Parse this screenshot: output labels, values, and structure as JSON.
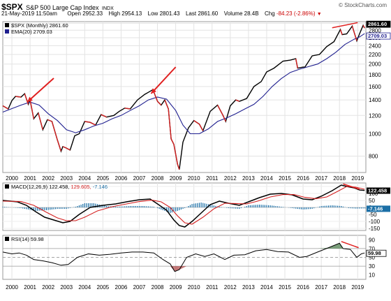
{
  "header": {
    "symbol": "$SPX",
    "name": "S&P 500 Large Cap Index",
    "exchange": "INDX",
    "date": "21-May-2019 11:50am",
    "open_label": "Open",
    "open": "2952.33",
    "high_label": "High",
    "high": "2954.13",
    "low_label": "Low",
    "low": "2801.43",
    "close_label": "Last",
    "close": "2861.60",
    "volume_label": "Volume",
    "volume": "28.4B",
    "chg_label": "Chg",
    "chg": "-84.23 (-2.86%)",
    "watermark": "© StockCharts.com"
  },
  "chart_data": [
    {
      "type": "line",
      "panel": "price",
      "legend": [
        {
          "label": "$SPX (Monthly) 2861.60",
          "color": "#000000"
        },
        {
          "label": "EMA(20) 2709.03",
          "color": "#1f1f8f"
        }
      ],
      "y_scale": "log",
      "ylim": [
        680,
        3050
      ],
      "y_ticks": [
        800,
        1000,
        1200,
        1400,
        1600,
        1800,
        2000,
        2200,
        2400,
        2600,
        2800,
        3000
      ],
      "x_ticks": [
        "2000",
        "2001",
        "2002",
        "2003",
        "2004",
        "2005",
        "2006",
        "2007",
        "2008",
        "2009",
        "2010",
        "2011",
        "2012",
        "2013",
        "2014",
        "2015",
        "2016",
        "2017",
        "2018",
        "2019"
      ],
      "xlim": [
        1999.5,
        2019.45
      ],
      "last_labels": [
        {
          "text": "2861.60",
          "value": 2861.6,
          "color": "#000000"
        },
        {
          "text": "2709.03",
          "value": 2709.03,
          "color": "#1f1f8f"
        }
      ],
      "series": [
        {
          "name": "$SPX (Monthly)",
          "color": "#000000",
          "x": [
            1999.5,
            1999.8,
            2000.0,
            2000.2,
            2000.5,
            2000.7,
            2000.9,
            2001.0,
            2001.2,
            2001.45,
            2001.7,
            2001.95,
            2002.2,
            2002.5,
            2002.7,
            2002.8,
            2002.95,
            2003.2,
            2003.45,
            2003.7,
            2004.0,
            2004.3,
            2004.6,
            2004.9,
            2005.2,
            2005.6,
            2005.9,
            2006.2,
            2006.5,
            2006.9,
            2007.3,
            2007.5,
            2007.75,
            2008.0,
            2008.2,
            2008.4,
            2008.6,
            2008.75,
            2008.9,
            2009.1,
            2009.2,
            2009.4,
            2009.7,
            2010.0,
            2010.3,
            2010.5,
            2010.9,
            2011.3,
            2011.6,
            2011.75,
            2012.0,
            2012.3,
            2012.5,
            2012.9,
            2013.3,
            2013.7,
            2014.0,
            2014.4,
            2014.9,
            2015.3,
            2015.6,
            2015.7,
            2016.0,
            2016.1,
            2016.5,
            2016.9,
            2017.3,
            2017.7,
            2018.05,
            2018.15,
            2018.4,
            2018.7,
            2018.95,
            2019.1,
            2019.3,
            2019.38
          ],
          "y": [
            1320,
            1280,
            1390,
            1450,
            1440,
            1490,
            1340,
            1400,
            1160,
            1230,
            1040,
            1150,
            1130,
            940,
            840,
            880,
            870,
            850,
            980,
            1000,
            1130,
            1120,
            1090,
            1210,
            1180,
            1200,
            1250,
            1290,
            1280,
            1400,
            1480,
            1510,
            1550,
            1380,
            1330,
            1400,
            1280,
            950,
            900,
            740,
            700,
            920,
            1060,
            1140,
            1100,
            1030,
            1250,
            1330,
            1200,
            1130,
            1320,
            1400,
            1380,
            1420,
            1600,
            1680,
            1850,
            1920,
            2060,
            2080,
            2110,
            1920,
            1940,
            1940,
            2170,
            2200,
            2380,
            2500,
            2820,
            2680,
            2700,
            2920,
            2520,
            2700,
            2940,
            2862
          ]
        },
        {
          "name": "EMA(20)",
          "color": "#1f1f8f",
          "x": [
            1999.5,
            2000.5,
            2001.0,
            2001.5,
            2002.0,
            2002.5,
            2003.0,
            2003.5,
            2004.0,
            2004.5,
            2005.0,
            2005.5,
            2006.0,
            2006.5,
            2007.0,
            2007.5,
            2008.0,
            2008.5,
            2009.0,
            2009.4,
            2009.8,
            2010.3,
            2010.8,
            2011.3,
            2011.8,
            2012.3,
            2012.8,
            2013.3,
            2013.8,
            2014.3,
            2014.8,
            2015.3,
            2015.8,
            2016.3,
            2016.8,
            2017.3,
            2017.8,
            2018.3,
            2018.8,
            2019.1,
            2019.38
          ],
          "y": [
            1240,
            1330,
            1370,
            1330,
            1220,
            1140,
            1040,
            1010,
            1040,
            1080,
            1110,
            1160,
            1200,
            1260,
            1320,
            1400,
            1440,
            1410,
            1260,
            1090,
            1000,
            1000,
            1050,
            1130,
            1170,
            1220,
            1280,
            1340,
            1450,
            1600,
            1730,
            1840,
            1900,
            1950,
            2000,
            2110,
            2250,
            2430,
            2560,
            2620,
            2709
          ]
        }
      ]
    },
    {
      "type": "line",
      "panel": "macd",
      "legend": [
        {
          "label": "MACD(12,26,9) 122.458, 129.605, -7.146",
          "color": "#000000"
        }
      ],
      "legend_parts": [
        "MACD(12,26,9)",
        "122.458,",
        "129.605,",
        "-7.146"
      ],
      "ylim": [
        -165,
        175
      ],
      "y_ticks": [
        150,
        100,
        50,
        0,
        -50,
        -100,
        -150
      ],
      "xlim": [
        1999.5,
        2019.45
      ],
      "last_labels": [
        {
          "text": "122.458",
          "value": 122.458,
          "color": "#000000"
        },
        {
          "text": "-7.146",
          "value": -7.146,
          "color": "#1b6fa6"
        }
      ],
      "series": [
        {
          "name": "MACD",
          "color": "#000000",
          "x": [
            1999.5,
            2000.3,
            2000.8,
            2001.3,
            2001.8,
            2002.3,
            2002.8,
            2003.2,
            2003.7,
            2004.3,
            2005.0,
            2005.7,
            2006.3,
            2007.0,
            2007.6,
            2008.0,
            2008.5,
            2008.9,
            2009.2,
            2009.5,
            2009.9,
            2010.4,
            2010.9,
            2011.4,
            2011.9,
            2012.5,
            2013.0,
            2013.6,
            2014.2,
            2014.8,
            2015.4,
            2016.0,
            2016.5,
            2017.0,
            2017.6,
            2018.1,
            2018.4,
            2018.8,
            2019.1,
            2019.38
          ],
          "y": [
            50,
            40,
            15,
            -30,
            -70,
            -90,
            -110,
            -100,
            -50,
            0,
            15,
            25,
            40,
            55,
            60,
            25,
            -20,
            -90,
            -130,
            -140,
            -100,
            -40,
            20,
            45,
            30,
            15,
            40,
            70,
            95,
            100,
            90,
            60,
            55,
            80,
            120,
            160,
            150,
            140,
            125,
            122
          ]
        },
        {
          "name": "Signal",
          "color": "#d42020",
          "x": [
            1999.5,
            2000.5,
            2001.2,
            2001.9,
            2002.5,
            2003.0,
            2003.5,
            2004.0,
            2004.7,
            2005.5,
            2006.3,
            2007.0,
            2007.7,
            2008.2,
            2008.7,
            2009.1,
            2009.5,
            2009.9,
            2010.5,
            2011.1,
            2011.7,
            2012.3,
            2012.9,
            2013.5,
            2014.2,
            2014.9,
            2015.5,
            2016.1,
            2016.7,
            2017.3,
            2017.9,
            2018.4,
            2018.9,
            2019.38
          ],
          "y": [
            45,
            42,
            15,
            -35,
            -75,
            -95,
            -95,
            -70,
            -25,
            5,
            25,
            42,
            52,
            40,
            0,
            -60,
            -110,
            -120,
            -70,
            -10,
            30,
            28,
            25,
            45,
            75,
            92,
            92,
            72,
            62,
            75,
            115,
            150,
            145,
            130
          ]
        }
      ],
      "histogram": {
        "name": "Histogram",
        "color": "#1b6fa6",
        "x": [
          1999.5,
          2000.5,
          2001.3,
          2001.9,
          2002.5,
          2003.0,
          2003.5,
          2004.0,
          2004.5,
          2005.2,
          2005.8,
          2006.5,
          2007.2,
          2007.8,
          2008.3,
          2008.7,
          2009.1,
          2009.5,
          2009.9,
          2010.4,
          2010.9,
          2011.4,
          2011.9,
          2012.5,
          2013.0,
          2013.6,
          2014.2,
          2014.8,
          2015.4,
          2016.0,
          2016.5,
          2017.0,
          2017.6,
          2018.1,
          2018.5,
          2018.9,
          2019.38
        ],
        "y": [
          5,
          -5,
          -25,
          -20,
          -10,
          -10,
          5,
          30,
          30,
          10,
          5,
          10,
          10,
          5,
          -20,
          -40,
          -25,
          -5,
          25,
          35,
          20,
          5,
          -5,
          -10,
          15,
          20,
          15,
          5,
          -5,
          -15,
          -10,
          10,
          15,
          10,
          -5,
          -8,
          -7
        ]
      }
    },
    {
      "type": "line",
      "panel": "rsi",
      "legend": [
        {
          "label": "RSI(14) 59.98",
          "color": "#000000"
        }
      ],
      "legend_parts": [
        "RSI(14)",
        "59.98"
      ],
      "ylim": [
        0,
        100
      ],
      "y_ticks": [
        90,
        70,
        50,
        30,
        10
      ],
      "x_ticks": [
        "2000",
        "2001",
        "2002",
        "2003",
        "2004",
        "2005",
        "2006",
        "2007",
        "2008",
        "2009",
        "2010",
        "2011",
        "2012",
        "2013",
        "2014",
        "2015",
        "2016",
        "2017",
        "2018",
        "2019"
      ],
      "xlim": [
        1999.5,
        2019.45
      ],
      "reference_lines": [
        70,
        50,
        30
      ],
      "last_labels": [
        {
          "text": "59.98",
          "value": 59.98,
          "color": "#000000"
        }
      ],
      "series": [
        {
          "name": "RSI(14)",
          "color": "#000000",
          "x": [
            1999.5,
            2000.0,
            2000.4,
            2000.8,
            2001.2,
            2001.7,
            2002.2,
            2002.7,
            2003.1,
            2003.6,
            2004.2,
            2004.8,
            2005.4,
            2006.0,
            2006.6,
            2007.2,
            2007.8,
            2008.3,
            2008.7,
            2008.95,
            2009.2,
            2009.6,
            2010.1,
            2010.6,
            2011.1,
            2011.7,
            2012.2,
            2012.8,
            2013.4,
            2014.0,
            2014.6,
            2015.2,
            2015.8,
            2016.2,
            2016.8,
            2017.4,
            2018.0,
            2018.2,
            2018.6,
            2018.95,
            2019.2,
            2019.38
          ],
          "y": [
            62,
            58,
            60,
            55,
            45,
            42,
            38,
            32,
            34,
            50,
            58,
            55,
            57,
            60,
            62,
            62,
            60,
            45,
            35,
            18,
            22,
            50,
            58,
            52,
            58,
            45,
            55,
            56,
            65,
            68,
            63,
            62,
            50,
            52,
            62,
            72,
            82,
            70,
            68,
            50,
            58,
            60
          ]
        }
      ]
    }
  ]
}
